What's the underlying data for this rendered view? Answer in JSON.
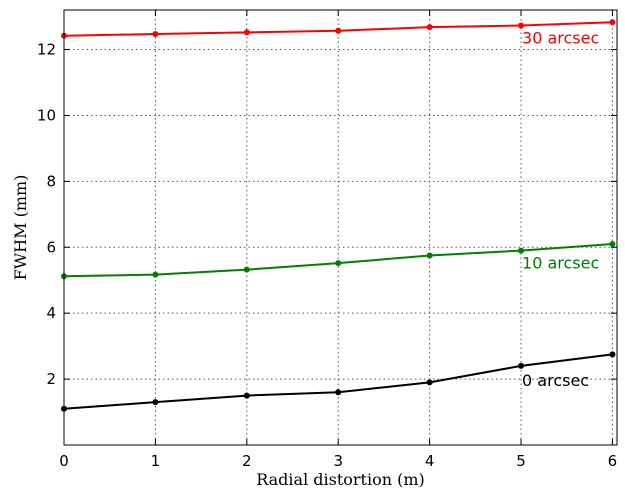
{
  "chart_data": {
    "type": "line",
    "xlabel": "Radial distortion (m)",
    "ylabel": "FWHM (mm)",
    "xlim": [
      0,
      6.05
    ],
    "ylim": [
      0,
      13.2
    ],
    "xticks": [
      0,
      1,
      2,
      3,
      4,
      5,
      6
    ],
    "yticks": [
      2,
      4,
      6,
      8,
      10,
      12
    ],
    "grid": true,
    "x": [
      0,
      1,
      2,
      3,
      4,
      5,
      6
    ],
    "series": [
      {
        "name": "30 arcsec",
        "color": "#ff0000",
        "values": [
          12.42,
          12.47,
          12.52,
          12.57,
          12.68,
          12.73,
          12.83
        ]
      },
      {
        "name": "10 arcsec",
        "color": "#008000",
        "values": [
          5.12,
          5.17,
          5.32,
          5.52,
          5.75,
          5.9,
          6.1
        ]
      },
      {
        "name": "0 arcsec",
        "color": "#000000",
        "values": [
          1.1,
          1.3,
          1.5,
          1.6,
          1.9,
          2.4,
          2.75
        ]
      }
    ]
  }
}
